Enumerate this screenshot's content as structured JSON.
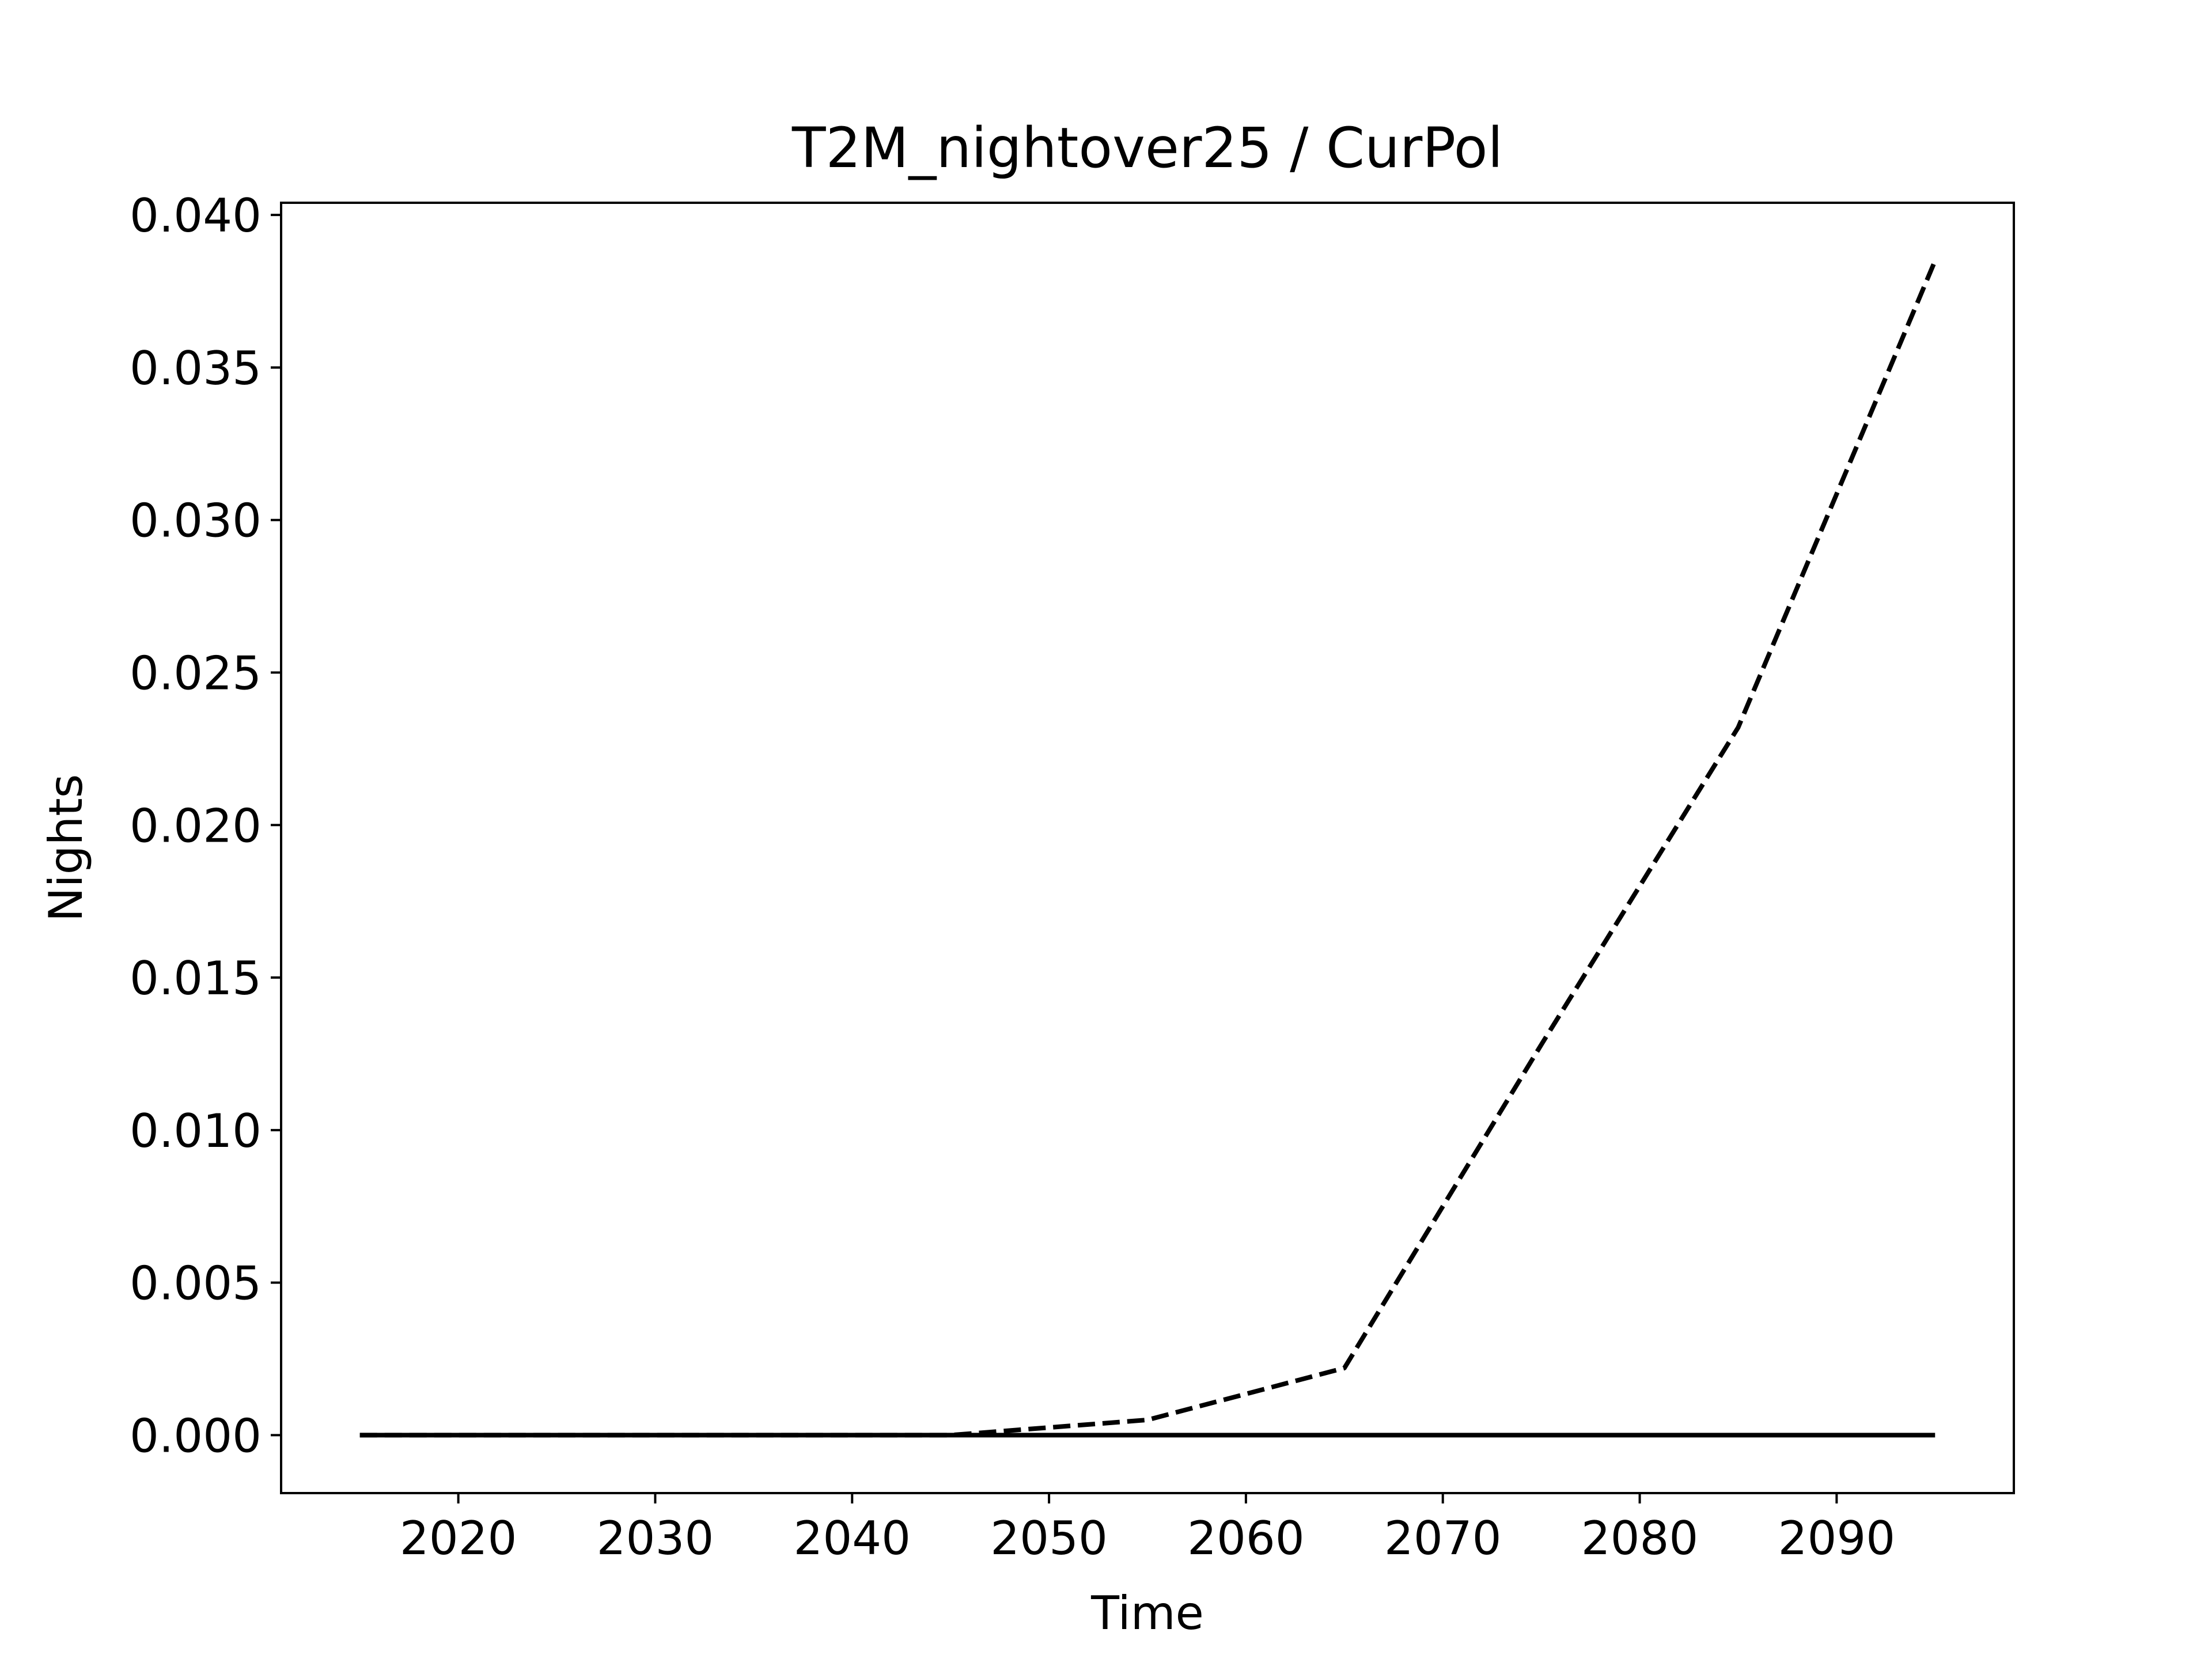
{
  "chart_data": {
    "type": "line",
    "title": "T2M_nightover25 / CurPol",
    "xlabel": "Time",
    "ylabel": "Nights",
    "xlim": [
      2011,
      2099
    ],
    "ylim": [
      -0.0019,
      0.0404
    ],
    "x_ticks": [
      2020,
      2030,
      2040,
      2050,
      2060,
      2070,
      2080,
      2090
    ],
    "x_tick_labels": [
      "2020",
      "2030",
      "2040",
      "2050",
      "2060",
      "2070",
      "2080",
      "2090"
    ],
    "y_ticks": [
      0.0,
      0.005,
      0.01,
      0.015,
      0.02,
      0.025,
      0.03,
      0.035,
      0.04
    ],
    "y_tick_labels": [
      "0.000",
      "0.005",
      "0.010",
      "0.015",
      "0.020",
      "0.025",
      "0.030",
      "0.035",
      "0.040"
    ],
    "grid": false,
    "legend": "none",
    "series": [
      {
        "style": "dashed",
        "color": "#000000",
        "x": [
          2015,
          2025,
          2035,
          2045,
          2055,
          2065,
          2075,
          2085,
          2095
        ],
        "y": [
          0.0,
          0.0,
          0.0,
          0.0,
          0.0005,
          0.0022,
          0.0128,
          0.0232,
          0.0385
        ]
      },
      {
        "style": "solid",
        "color": "#000000",
        "x": [
          2015,
          2025,
          2035,
          2045,
          2055,
          2065,
          2075,
          2085,
          2095
        ],
        "y": [
          0.0,
          0.0,
          0.0,
          0.0,
          0.0,
          0.0,
          0.0,
          0.0,
          0.0
        ]
      }
    ]
  }
}
